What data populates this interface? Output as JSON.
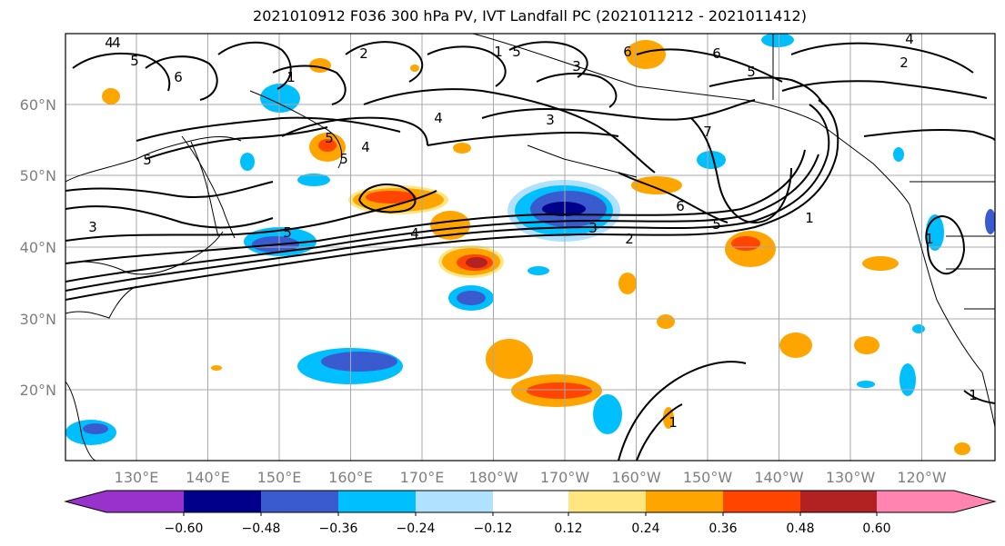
{
  "title": "2021010912 F036 300 hPa PV, IVT Landfall PC (2021011212 - 2021011412)",
  "axes": {
    "lat_labels": [
      "60°N",
      "50°N",
      "40°N",
      "30°N",
      "20°N"
    ],
    "lon_labels": [
      "130°E",
      "140°E",
      "150°E",
      "160°E",
      "170°E",
      "180°W",
      "170°W",
      "160°W",
      "150°W",
      "140°W",
      "130°W",
      "120°W"
    ],
    "gridlines": true
  },
  "colorbar": {
    "tick_labels": [
      "−0.60",
      "−0.48",
      "−0.36",
      "−0.24",
      "−0.12",
      "0.12",
      "0.24",
      "0.36",
      "0.48",
      "0.60"
    ],
    "colors": [
      "#9932cc",
      "#00008b",
      "#3a5bcf",
      "#00bfff",
      "#b0e2ff",
      "#ffffff",
      "#ffe680",
      "#ffa500",
      "#ff4500",
      "#b22222",
      "#ff85b0"
    ],
    "extend": "both"
  },
  "contour_labels": [
    "4",
    "5",
    "6",
    "2",
    "1",
    "1",
    "5",
    "6",
    "3",
    "5",
    "4",
    "3",
    "2",
    "3",
    "4",
    "4",
    "5",
    "5",
    "4",
    "1",
    "6",
    "5",
    "1",
    "7",
    "6",
    "5",
    "3",
    "2",
    "5",
    "4",
    "1",
    "1"
  ],
  "shading_colors": {
    "neg_light": "#b0e2ff",
    "neg_mid": "#00bfff",
    "neg_strong": "#3a5bcf",
    "neg_max": "#00008b",
    "pos_light": "#ffe680",
    "pos_mid": "#ffa500",
    "pos_strong": "#ff4500",
    "pos_max": "#b22222"
  }
}
